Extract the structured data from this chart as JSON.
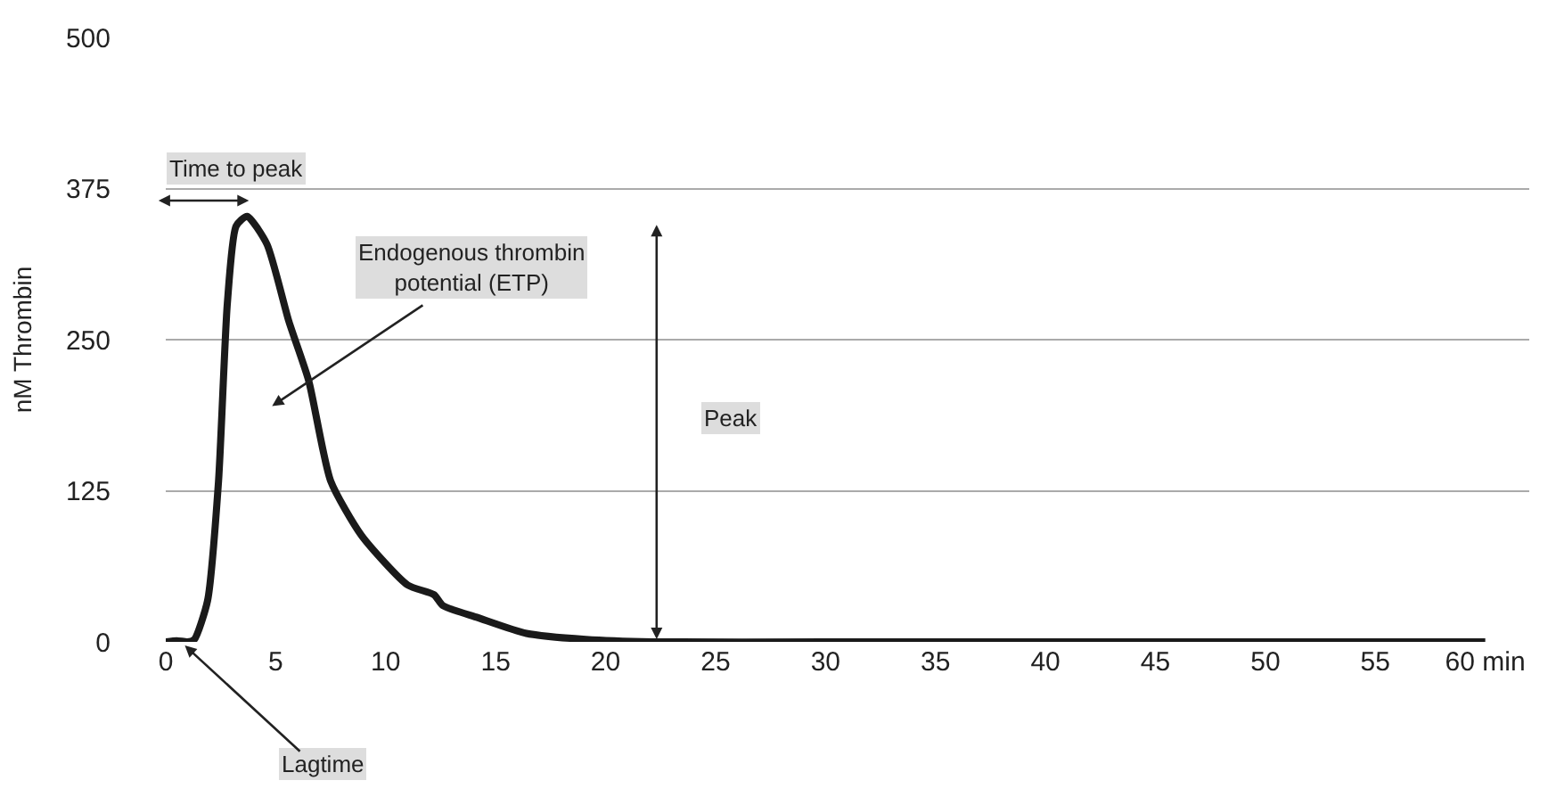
{
  "chart_data": {
    "type": "line",
    "ylabel": "nM Thrombin",
    "x": [
      0,
      0.5,
      1,
      1.3,
      1.9,
      2.4,
      2.8,
      3.2,
      3.7,
      4.6,
      5.6,
      6.5,
      7.5,
      8.9,
      11.0,
      12.2,
      12.6,
      14.2,
      16.4,
      19.1,
      22.1,
      30,
      40,
      50,
      60
    ],
    "series": [
      {
        "color": "#1a1a1a",
        "values": [
          0,
          1,
          0,
          2,
          34,
          133,
          280,
          344,
          352,
          329,
          265,
          216,
          133,
          88,
          47,
          39,
          30,
          20,
          7,
          2,
          0,
          0,
          0,
          0,
          0
        ]
      }
    ],
    "xlim": [
      0,
      62
    ],
    "ylim": [
      0,
      500
    ],
    "xticks": [
      0,
      5,
      10,
      15,
      20,
      25,
      30,
      35,
      40,
      45,
      50,
      55,
      {
        "value": 60,
        "label": "60 min"
      }
    ],
    "yticks": [
      0,
      125,
      250,
      375,
      500
    ],
    "grid": "y",
    "marker": "none",
    "line_style": "solid",
    "annotations": [
      "Time to peak",
      "Endogenous thrombin potential (ETP)",
      "Peak",
      "Lagtime"
    ]
  }
}
